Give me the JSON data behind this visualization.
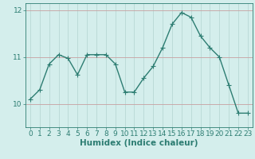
{
  "x": [
    0,
    1,
    2,
    3,
    4,
    5,
    6,
    7,
    8,
    9,
    10,
    11,
    12,
    13,
    14,
    15,
    16,
    17,
    18,
    19,
    20,
    21,
    22,
    23
  ],
  "y": [
    10.1,
    10.3,
    10.85,
    11.05,
    10.97,
    10.62,
    11.05,
    11.05,
    11.05,
    10.85,
    10.25,
    10.25,
    10.55,
    10.8,
    11.2,
    11.7,
    11.95,
    11.85,
    11.45,
    11.2,
    11.0,
    10.4,
    9.8,
    9.8
  ],
  "line_color": "#2d7d72",
  "marker": "+",
  "bg_color": "#d4eeec",
  "grid_color_v": "#b8d8d5",
  "grid_color_h": "#c8a0a0",
  "axis_color": "#2d7d72",
  "xlabel": "Humidex (Indice chaleur)",
  "ylim": [
    9.5,
    12.15
  ],
  "xlim": [
    -0.5,
    23.5
  ],
  "yticks": [
    10,
    11,
    12
  ],
  "xticks": [
    0,
    1,
    2,
    3,
    4,
    5,
    6,
    7,
    8,
    9,
    10,
    11,
    12,
    13,
    14,
    15,
    16,
    17,
    18,
    19,
    20,
    21,
    22,
    23
  ],
  "xlabel_fontsize": 7.5,
  "tick_fontsize": 6.5,
  "line_width": 1.0,
  "marker_size": 4
}
